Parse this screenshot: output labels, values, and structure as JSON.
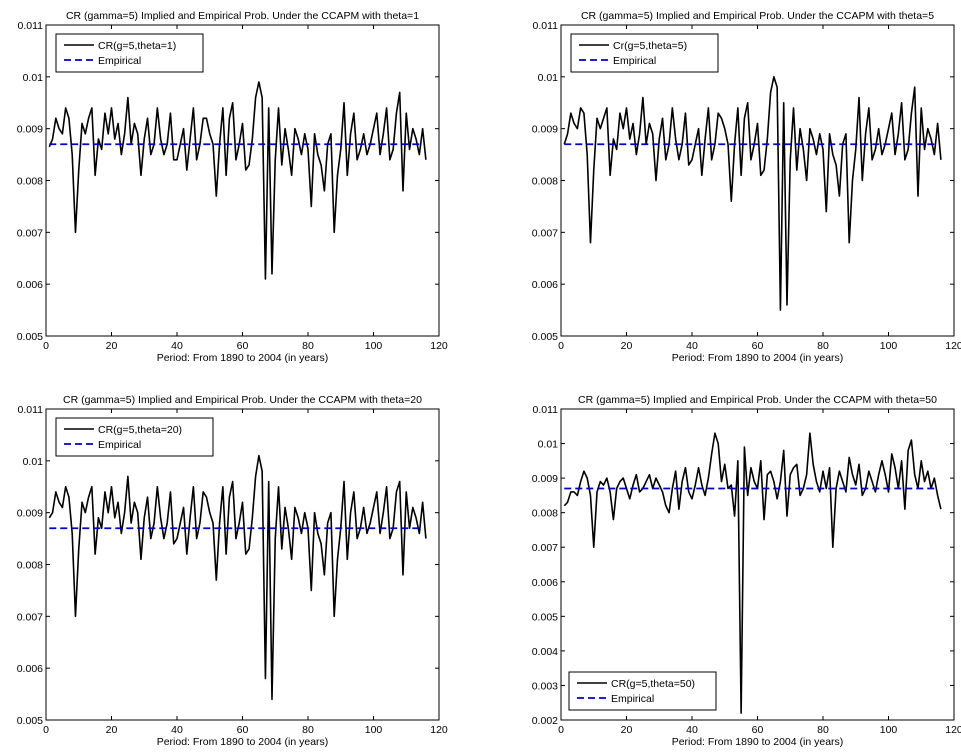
{
  "figure": {
    "colors": {
      "model_line": "#000000",
      "empirical_line": "#0000cc",
      "axes": "#000000",
      "background": "#ffffff"
    }
  },
  "chart_data": [
    {
      "type": "line",
      "title": "CR (gamma=5) Implied and Empirical Prob. Under the CCAPM with theta=1",
      "xlabel": "Period: From 1890 to 2004 (in years)",
      "ylabel": "",
      "xlim": [
        0,
        120
      ],
      "ylim": [
        0.005,
        0.011
      ],
      "xticks": [
        0,
        20,
        40,
        60,
        80,
        100,
        120
      ],
      "xtick_labels": [
        "0",
        "20",
        "40",
        "60",
        "80",
        "100",
        "120"
      ],
      "yticks": [
        0.005,
        0.006,
        0.007,
        0.008,
        0.009,
        0.01,
        0.011
      ],
      "ytick_labels": [
        "0.005",
        "0.006",
        "0.007",
        "0.008",
        "0.009",
        "0.01",
        "0.011"
      ],
      "grid": false,
      "legend_position": "top-left",
      "series": [
        {
          "name": "CR(g=5,theta=1)",
          "style": "solid",
          "color": "#000000",
          "x_start": 1,
          "x_step": 1,
          "values": [
            0.00865,
            0.0088,
            0.0092,
            0.009,
            0.0089,
            0.0094,
            0.0092,
            0.0085,
            0.007,
            0.0082,
            0.0091,
            0.0089,
            0.0092,
            0.0094,
            0.0081,
            0.0088,
            0.0086,
            0.0093,
            0.0089,
            0.0094,
            0.0088,
            0.0091,
            0.0085,
            0.0089,
            0.0096,
            0.0087,
            0.0091,
            0.0089,
            0.0081,
            0.0088,
            0.0092,
            0.0085,
            0.0087,
            0.0094,
            0.0088,
            0.0085,
            0.0087,
            0.0093,
            0.0084,
            0.0084,
            0.0087,
            0.009,
            0.0082,
            0.0088,
            0.0094,
            0.0084,
            0.0087,
            0.0092,
            0.0092,
            0.0089,
            0.0087,
            0.0077,
            0.0087,
            0.0094,
            0.0081,
            0.0092,
            0.0095,
            0.0084,
            0.0087,
            0.0091,
            0.0082,
            0.0083,
            0.0088,
            0.0096,
            0.0099,
            0.0096,
            0.0061,
            0.0094,
            0.0062,
            0.0084,
            0.0094,
            0.0083,
            0.009,
            0.0086,
            0.0081,
            0.009,
            0.0088,
            0.0085,
            0.0089,
            0.0086,
            0.0075,
            0.0089,
            0.0085,
            0.0083,
            0.0078,
            0.0087,
            0.0089,
            0.007,
            0.0081,
            0.0086,
            0.0095,
            0.0081,
            0.0089,
            0.0093,
            0.0084,
            0.0086,
            0.0089,
            0.0085,
            0.0087,
            0.009,
            0.0093,
            0.0085,
            0.0089,
            0.0094,
            0.0084,
            0.0086,
            0.0093,
            0.0097,
            0.0078,
            0.0093,
            0.0086,
            0.009,
            0.0088,
            0.0085,
            0.009,
            0.0084
          ]
        },
        {
          "name": "Empirical",
          "style": "dashed",
          "color": "#0000cc",
          "x": [
            1,
            115
          ],
          "values": [
            0.0087,
            0.0087
          ]
        }
      ]
    },
    {
      "type": "line",
      "title": "CR (gamma=5) Implied and Empirical Prob. Under the CCAPM with theta=5",
      "xlabel": "Period: From 1890 to 2004 (in years)",
      "ylabel": "",
      "xlim": [
        0,
        120
      ],
      "ylim": [
        0.005,
        0.011
      ],
      "xticks": [
        0,
        20,
        40,
        60,
        80,
        100,
        120
      ],
      "xtick_labels": [
        "0",
        "20",
        "40",
        "60",
        "80",
        "100",
        "120"
      ],
      "yticks": [
        0.005,
        0.006,
        0.007,
        0.008,
        0.009,
        0.01,
        0.011
      ],
      "ytick_labels": [
        "0.005",
        "0.006",
        "0.007",
        "0.008",
        "0.009",
        "0.01",
        "0.011"
      ],
      "grid": false,
      "legend_position": "top-left",
      "series": [
        {
          "name": "Cr(g=5,theta=5)",
          "style": "solid",
          "color": "#000000",
          "x_start": 1,
          "x_step": 1,
          "values": [
            0.0087,
            0.0089,
            0.0093,
            0.0091,
            0.009,
            0.0094,
            0.0093,
            0.0085,
            0.0068,
            0.0082,
            0.0092,
            0.009,
            0.0092,
            0.0094,
            0.0081,
            0.0088,
            0.0086,
            0.0093,
            0.009,
            0.0094,
            0.0088,
            0.0091,
            0.0085,
            0.0089,
            0.0096,
            0.0087,
            0.0091,
            0.0089,
            0.008,
            0.0088,
            0.0092,
            0.0084,
            0.0087,
            0.0094,
            0.0088,
            0.0084,
            0.0087,
            0.0093,
            0.0083,
            0.0084,
            0.0087,
            0.009,
            0.0081,
            0.0088,
            0.0094,
            0.0084,
            0.0087,
            0.0093,
            0.0092,
            0.009,
            0.0087,
            0.0076,
            0.0087,
            0.0094,
            0.0081,
            0.0092,
            0.0095,
            0.0084,
            0.0087,
            0.0091,
            0.0081,
            0.0082,
            0.0088,
            0.0097,
            0.01,
            0.0098,
            0.0055,
            0.0095,
            0.0056,
            0.0084,
            0.0094,
            0.0082,
            0.009,
            0.0086,
            0.008,
            0.009,
            0.0088,
            0.0085,
            0.0089,
            0.0086,
            0.0074,
            0.0089,
            0.0085,
            0.0083,
            0.0077,
            0.0087,
            0.0089,
            0.0068,
            0.008,
            0.0086,
            0.0096,
            0.008,
            0.0089,
            0.0094,
            0.0084,
            0.0086,
            0.009,
            0.0085,
            0.0087,
            0.009,
            0.0093,
            0.0085,
            0.0089,
            0.0095,
            0.0084,
            0.0086,
            0.0093,
            0.0098,
            0.0077,
            0.0094,
            0.0086,
            0.009,
            0.0088,
            0.0085,
            0.0091,
            0.0084
          ]
        },
        {
          "name": "Empirical",
          "style": "dashed",
          "color": "#0000cc",
          "x": [
            1,
            115
          ],
          "values": [
            0.0087,
            0.0087
          ]
        }
      ]
    },
    {
      "type": "line",
      "title": "CR (gamma=5) Implied and Empirical Prob. Under the CCAPM with theta=20",
      "xlabel": "Period: From 1890 to 2004 (in years)",
      "ylabel": "",
      "xlim": [
        0,
        120
      ],
      "ylim": [
        0.005,
        0.011
      ],
      "xticks": [
        0,
        20,
        40,
        60,
        80,
        100,
        120
      ],
      "xtick_labels": [
        "0",
        "20",
        "40",
        "60",
        "80",
        "100",
        "120"
      ],
      "yticks": [
        0.005,
        0.006,
        0.007,
        0.008,
        0.009,
        0.01,
        0.011
      ],
      "ytick_labels": [
        "0.005",
        "0.006",
        "0.007",
        "0.008",
        "0.009",
        "0.01",
        "0.011"
      ],
      "grid": false,
      "legend_position": "top-left",
      "series": [
        {
          "name": "CR(g=5,theta=20)",
          "style": "solid",
          "color": "#000000",
          "x_start": 1,
          "x_step": 1,
          "values": [
            0.0089,
            0.009,
            0.0094,
            0.0092,
            0.0091,
            0.0095,
            0.0093,
            0.0086,
            0.007,
            0.0083,
            0.0092,
            0.009,
            0.0093,
            0.0095,
            0.0082,
            0.0089,
            0.0087,
            0.0094,
            0.009,
            0.0095,
            0.0089,
            0.0092,
            0.0086,
            0.009,
            0.0097,
            0.0088,
            0.0092,
            0.009,
            0.0081,
            0.0089,
            0.0093,
            0.0085,
            0.0088,
            0.0095,
            0.0089,
            0.0085,
            0.0088,
            0.0094,
            0.0084,
            0.0085,
            0.0088,
            0.0091,
            0.0082,
            0.0089,
            0.0095,
            0.0085,
            0.0088,
            0.0094,
            0.0093,
            0.009,
            0.0088,
            0.0077,
            0.0088,
            0.0095,
            0.0082,
            0.0093,
            0.0096,
            0.0085,
            0.0088,
            0.0092,
            0.0082,
            0.0083,
            0.0089,
            0.0097,
            0.0101,
            0.0098,
            0.0058,
            0.0096,
            0.0054,
            0.0085,
            0.0095,
            0.0083,
            0.0091,
            0.0087,
            0.0081,
            0.0091,
            0.0089,
            0.0086,
            0.009,
            0.0087,
            0.0075,
            0.009,
            0.0086,
            0.0084,
            0.0078,
            0.0088,
            0.009,
            0.007,
            0.0081,
            0.0087,
            0.0096,
            0.0081,
            0.009,
            0.0094,
            0.0085,
            0.0087,
            0.0091,
            0.0086,
            0.0088,
            0.0091,
            0.0094,
            0.0086,
            0.009,
            0.0095,
            0.0085,
            0.0087,
            0.0094,
            0.0096,
            0.0078,
            0.0094,
            0.0087,
            0.0091,
            0.0089,
            0.0086,
            0.0092,
            0.0085
          ]
        },
        {
          "name": "Empirical",
          "style": "dashed",
          "color": "#0000cc",
          "x": [
            1,
            115
          ],
          "values": [
            0.0087,
            0.0087
          ]
        }
      ]
    },
    {
      "type": "line",
      "title": "CR (gamma=5) Implied and Empirical Prob. Under the CCAPM with theta=50",
      "xlabel": "Period: From 1890 to 2004 (in years)",
      "ylabel": "",
      "xlim": [
        0,
        120
      ],
      "ylim": [
        0.002,
        0.011
      ],
      "xticks": [
        0,
        20,
        40,
        60,
        80,
        100,
        120
      ],
      "xtick_labels": [
        "0",
        "20",
        "40",
        "60",
        "80",
        "100",
        "120"
      ],
      "yticks": [
        0.002,
        0.003,
        0.004,
        0.005,
        0.006,
        0.007,
        0.008,
        0.009,
        0.01,
        0.011
      ],
      "ytick_labels": [
        "0.002",
        "0.003",
        "0.004",
        "0.005",
        "0.006",
        "0.007",
        "0.008",
        "0.009",
        "0.01",
        "0.011"
      ],
      "grid": false,
      "legend_position": "bottom-left",
      "series": [
        {
          "name": "CR(g=5,theta=50)",
          "style": "solid",
          "color": "#000000",
          "x_start": 1,
          "x_step": 1,
          "values": [
            0.0082,
            0.0083,
            0.0086,
            0.0086,
            0.0085,
            0.0089,
            0.0092,
            0.009,
            0.0085,
            0.007,
            0.0086,
            0.0089,
            0.0088,
            0.009,
            0.0086,
            0.0078,
            0.0087,
            0.0089,
            0.009,
            0.0087,
            0.0084,
            0.0088,
            0.0091,
            0.0086,
            0.0087,
            0.0089,
            0.0091,
            0.0087,
            0.009,
            0.0088,
            0.0086,
            0.0082,
            0.008,
            0.0087,
            0.0092,
            0.0081,
            0.0089,
            0.0093,
            0.0086,
            0.0084,
            0.0088,
            0.0093,
            0.0088,
            0.0085,
            0.009,
            0.0097,
            0.0103,
            0.01,
            0.0089,
            0.0094,
            0.0087,
            0.0088,
            0.0079,
            0.0095,
            0.0022,
            0.0099,
            0.0085,
            0.0093,
            0.0089,
            0.0087,
            0.0095,
            0.0078,
            0.0091,
            0.0092,
            0.0089,
            0.0084,
            0.0089,
            0.0098,
            0.0079,
            0.0091,
            0.0093,
            0.0094,
            0.0085,
            0.0087,
            0.0091,
            0.0103,
            0.0094,
            0.0089,
            0.0086,
            0.0092,
            0.0087,
            0.0093,
            0.007,
            0.0087,
            0.0092,
            0.0089,
            0.0086,
            0.0096,
            0.0091,
            0.0088,
            0.0094,
            0.0085,
            0.0087,
            0.0092,
            0.0089,
            0.0086,
            0.0091,
            0.0095,
            0.0091,
            0.0086,
            0.0097,
            0.0093,
            0.0087,
            0.0095,
            0.0081,
            0.0098,
            0.0101,
            0.0091,
            0.0087,
            0.0095,
            0.0089,
            0.0092,
            0.0087,
            0.009,
            0.0085,
            0.0081
          ]
        },
        {
          "name": "Empirical",
          "style": "dashed",
          "color": "#0000cc",
          "x": [
            1,
            115
          ],
          "values": [
            0.0087,
            0.0087
          ]
        }
      ]
    }
  ]
}
